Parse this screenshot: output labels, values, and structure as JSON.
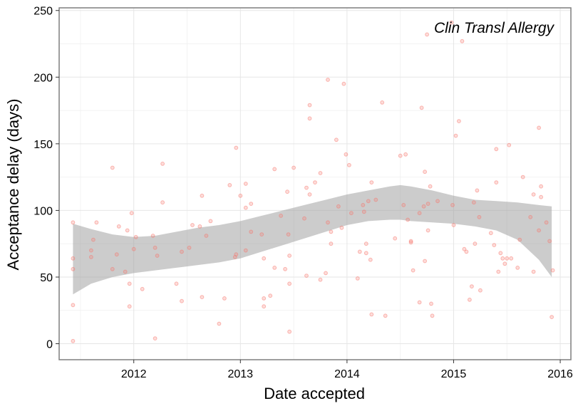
{
  "chart_data": {
    "type": "scatter",
    "title": "",
    "annotation": "Clin Transl Allergy",
    "xlabel": "Date accepted",
    "ylabel": "Acceptance delay (days)",
    "x_axis": "date (decimal year)",
    "xlim": [
      2011.3,
      2016.1
    ],
    "ylim": [
      -12,
      252
    ],
    "x_ticks": [
      2012,
      2013,
      2014,
      2015,
      2016
    ],
    "y_ticks": [
      0,
      50,
      100,
      150,
      200,
      250
    ],
    "grid": true,
    "legend": "none",
    "point_color": "#F8766D",
    "band_color": "#999999",
    "points": [
      {
        "x": 2011.43,
        "y": 91
      },
      {
        "x": 2011.43,
        "y": 64
      },
      {
        "x": 2011.43,
        "y": 56
      },
      {
        "x": 2011.43,
        "y": 29
      },
      {
        "x": 2011.43,
        "y": 2
      },
      {
        "x": 2011.6,
        "y": 70
      },
      {
        "x": 2011.6,
        "y": 65
      },
      {
        "x": 2011.62,
        "y": 78
      },
      {
        "x": 2011.65,
        "y": 91
      },
      {
        "x": 2011.8,
        "y": 132
      },
      {
        "x": 2011.8,
        "y": 56
      },
      {
        "x": 2011.84,
        "y": 67
      },
      {
        "x": 2011.86,
        "y": 88
      },
      {
        "x": 2011.92,
        "y": 54
      },
      {
        "x": 2011.94,
        "y": 85
      },
      {
        "x": 2011.96,
        "y": 45
      },
      {
        "x": 2011.96,
        "y": 28
      },
      {
        "x": 2011.98,
        "y": 98
      },
      {
        "x": 2012.0,
        "y": 71
      },
      {
        "x": 2012.02,
        "y": 80
      },
      {
        "x": 2012.08,
        "y": 41
      },
      {
        "x": 2012.18,
        "y": 81
      },
      {
        "x": 2012.2,
        "y": 72
      },
      {
        "x": 2012.2,
        "y": 4
      },
      {
        "x": 2012.22,
        "y": 66
      },
      {
        "x": 2012.27,
        "y": 135
      },
      {
        "x": 2012.27,
        "y": 106
      },
      {
        "x": 2012.4,
        "y": 45
      },
      {
        "x": 2012.45,
        "y": 69
      },
      {
        "x": 2012.45,
        "y": 32
      },
      {
        "x": 2012.52,
        "y": 72
      },
      {
        "x": 2012.55,
        "y": 89
      },
      {
        "x": 2012.62,
        "y": 88
      },
      {
        "x": 2012.64,
        "y": 111
      },
      {
        "x": 2012.64,
        "y": 35
      },
      {
        "x": 2012.68,
        "y": 81
      },
      {
        "x": 2012.72,
        "y": 92
      },
      {
        "x": 2012.8,
        "y": 15
      },
      {
        "x": 2012.85,
        "y": 34
      },
      {
        "x": 2012.9,
        "y": 119
      },
      {
        "x": 2012.95,
        "y": 65
      },
      {
        "x": 2012.96,
        "y": 67
      },
      {
        "x": 2012.96,
        "y": 147
      },
      {
        "x": 2013.0,
        "y": 111
      },
      {
        "x": 2013.05,
        "y": 120
      },
      {
        "x": 2013.05,
        "y": 102
      },
      {
        "x": 2013.05,
        "y": 70
      },
      {
        "x": 2013.1,
        "y": 105
      },
      {
        "x": 2013.1,
        "y": 84
      },
      {
        "x": 2013.2,
        "y": 82
      },
      {
        "x": 2013.22,
        "y": 64
      },
      {
        "x": 2013.22,
        "y": 34
      },
      {
        "x": 2013.22,
        "y": 28
      },
      {
        "x": 2013.28,
        "y": 36
      },
      {
        "x": 2013.32,
        "y": 131
      },
      {
        "x": 2013.32,
        "y": 57
      },
      {
        "x": 2013.38,
        "y": 96
      },
      {
        "x": 2013.42,
        "y": 56
      },
      {
        "x": 2013.44,
        "y": 114
      },
      {
        "x": 2013.45,
        "y": 82
      },
      {
        "x": 2013.46,
        "y": 66
      },
      {
        "x": 2013.46,
        "y": 45
      },
      {
        "x": 2013.46,
        "y": 9
      },
      {
        "x": 2013.5,
        "y": 132
      },
      {
        "x": 2013.6,
        "y": 94
      },
      {
        "x": 2013.62,
        "y": 117
      },
      {
        "x": 2013.62,
        "y": 51
      },
      {
        "x": 2013.65,
        "y": 179
      },
      {
        "x": 2013.65,
        "y": 169
      },
      {
        "x": 2013.65,
        "y": 112
      },
      {
        "x": 2013.7,
        "y": 121
      },
      {
        "x": 2013.75,
        "y": 128
      },
      {
        "x": 2013.75,
        "y": 48
      },
      {
        "x": 2013.8,
        "y": 53
      },
      {
        "x": 2013.82,
        "y": 198
      },
      {
        "x": 2013.82,
        "y": 91
      },
      {
        "x": 2013.85,
        "y": 75
      },
      {
        "x": 2013.85,
        "y": 84
      },
      {
        "x": 2013.9,
        "y": 153
      },
      {
        "x": 2013.92,
        "y": 103
      },
      {
        "x": 2013.95,
        "y": 87
      },
      {
        "x": 2013.97,
        "y": 195
      },
      {
        "x": 2013.99,
        "y": 142
      },
      {
        "x": 2014.02,
        "y": 134
      },
      {
        "x": 2014.04,
        "y": 98
      },
      {
        "x": 2014.1,
        "y": 49
      },
      {
        "x": 2014.12,
        "y": 69
      },
      {
        "x": 2014.15,
        "y": 104
      },
      {
        "x": 2014.16,
        "y": 99
      },
      {
        "x": 2014.18,
        "y": 75
      },
      {
        "x": 2014.18,
        "y": 68
      },
      {
        "x": 2014.2,
        "y": 107
      },
      {
        "x": 2014.22,
        "y": 63
      },
      {
        "x": 2014.23,
        "y": 121
      },
      {
        "x": 2014.23,
        "y": 22
      },
      {
        "x": 2014.27,
        "y": 108
      },
      {
        "x": 2014.33,
        "y": 181
      },
      {
        "x": 2014.36,
        "y": 21
      },
      {
        "x": 2014.45,
        "y": 79
      },
      {
        "x": 2014.5,
        "y": 141
      },
      {
        "x": 2014.53,
        "y": 104
      },
      {
        "x": 2014.55,
        "y": 142
      },
      {
        "x": 2014.57,
        "y": 93
      },
      {
        "x": 2014.6,
        "y": 77
      },
      {
        "x": 2014.6,
        "y": 76
      },
      {
        "x": 2014.62,
        "y": 55
      },
      {
        "x": 2014.68,
        "y": 98
      },
      {
        "x": 2014.68,
        "y": 31
      },
      {
        "x": 2014.7,
        "y": 177
      },
      {
        "x": 2014.72,
        "y": 103
      },
      {
        "x": 2014.73,
        "y": 129
      },
      {
        "x": 2014.73,
        "y": 62
      },
      {
        "x": 2014.75,
        "y": 232
      },
      {
        "x": 2014.76,
        "y": 105
      },
      {
        "x": 2014.76,
        "y": 85
      },
      {
        "x": 2014.78,
        "y": 118
      },
      {
        "x": 2014.79,
        "y": 30
      },
      {
        "x": 2014.8,
        "y": 21
      },
      {
        "x": 2014.85,
        "y": 107
      },
      {
        "x": 2014.98,
        "y": 241
      },
      {
        "x": 2014.99,
        "y": 104
      },
      {
        "x": 2015.0,
        "y": 89
      },
      {
        "x": 2015.02,
        "y": 156
      },
      {
        "x": 2015.05,
        "y": 167
      },
      {
        "x": 2015.08,
        "y": 227
      },
      {
        "x": 2015.1,
        "y": 71
      },
      {
        "x": 2015.12,
        "y": 69
      },
      {
        "x": 2015.15,
        "y": 33
      },
      {
        "x": 2015.17,
        "y": 43
      },
      {
        "x": 2015.19,
        "y": 106
      },
      {
        "x": 2015.2,
        "y": 75
      },
      {
        "x": 2015.22,
        "y": 115
      },
      {
        "x": 2015.24,
        "y": 95
      },
      {
        "x": 2015.25,
        "y": 40
      },
      {
        "x": 2015.35,
        "y": 83
      },
      {
        "x": 2015.38,
        "y": 74
      },
      {
        "x": 2015.4,
        "y": 146
      },
      {
        "x": 2015.4,
        "y": 121
      },
      {
        "x": 2015.42,
        "y": 54
      },
      {
        "x": 2015.44,
        "y": 68
      },
      {
        "x": 2015.46,
        "y": 64
      },
      {
        "x": 2015.48,
        "y": 60
      },
      {
        "x": 2015.5,
        "y": 64
      },
      {
        "x": 2015.52,
        "y": 149
      },
      {
        "x": 2015.54,
        "y": 64
      },
      {
        "x": 2015.6,
        "y": 57
      },
      {
        "x": 2015.62,
        "y": 78
      },
      {
        "x": 2015.65,
        "y": 125
      },
      {
        "x": 2015.72,
        "y": 95
      },
      {
        "x": 2015.75,
        "y": 112
      },
      {
        "x": 2015.75,
        "y": 54
      },
      {
        "x": 2015.8,
        "y": 162
      },
      {
        "x": 2015.8,
        "y": 85
      },
      {
        "x": 2015.82,
        "y": 118
      },
      {
        "x": 2015.82,
        "y": 110
      },
      {
        "x": 2015.87,
        "y": 91
      },
      {
        "x": 2015.9,
        "y": 77
      },
      {
        "x": 2015.92,
        "y": 20
      },
      {
        "x": 2015.93,
        "y": 55
      }
    ],
    "smooth_band": {
      "x": [
        2011.43,
        2011.6,
        2011.8,
        2012.0,
        2012.2,
        2012.4,
        2012.6,
        2012.8,
        2013.0,
        2013.2,
        2013.4,
        2013.6,
        2013.8,
        2014.0,
        2014.2,
        2014.4,
        2014.5,
        2014.6,
        2014.8,
        2015.0,
        2015.2,
        2015.4,
        2015.6,
        2015.8,
        2015.92
      ],
      "upper": [
        90,
        86,
        82,
        80,
        81,
        84,
        87,
        89,
        92,
        96,
        100,
        104,
        108,
        112,
        115,
        118,
        119,
        118,
        115,
        111,
        108,
        107,
        106,
        104,
        103
      ],
      "lower": [
        37,
        45,
        50,
        53,
        55,
        57,
        59,
        61,
        64,
        69,
        74,
        79,
        84,
        89,
        92,
        93,
        93,
        92,
        91,
        90,
        88,
        85,
        78,
        63,
        50
      ]
    }
  }
}
